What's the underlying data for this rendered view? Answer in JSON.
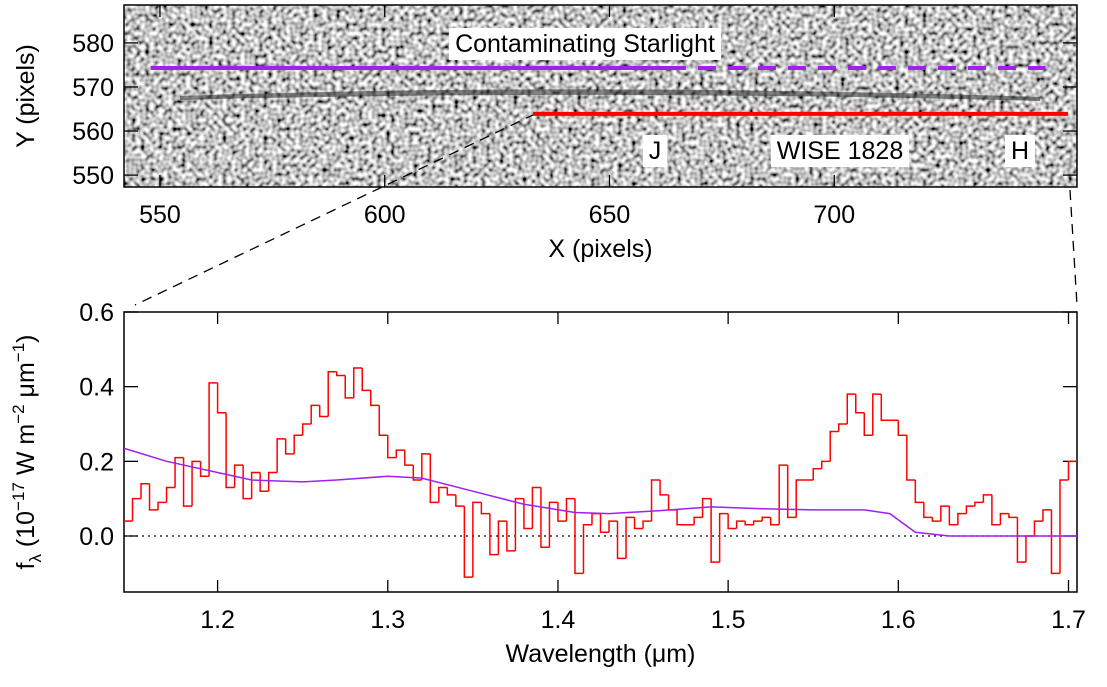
{
  "chart_data": [
    {
      "type": "image",
      "xlabel": "X (pixels)",
      "ylabel": "Y (pixels)",
      "xlim": [
        542,
        754
      ],
      "ylim": [
        547.3,
        588.6
      ],
      "xticks": [
        550,
        600,
        650,
        700
      ],
      "yticks": [
        550,
        560,
        570,
        580
      ],
      "lines": [
        {
          "color": "#a020f0",
          "style": "solid",
          "x": [
            548,
            663
          ],
          "y": [
            574.3,
            574.3
          ]
        },
        {
          "color": "#a020f0",
          "style": "dashed",
          "x": [
            663,
            747
          ],
          "y": [
            574.3,
            574.3
          ]
        },
        {
          "color": "#ff0000",
          "style": "solid",
          "x": [
            633,
            752
          ],
          "y": [
            563.9,
            563.9
          ]
        }
      ],
      "annotations": [
        {
          "text": "Contaminating Starlight",
          "color": "#a020f0"
        },
        {
          "text": "J",
          "color": "#ff0000"
        },
        {
          "text": "WISE 1828",
          "color": "#ff0000"
        },
        {
          "text": "H",
          "color": "#ff0000"
        }
      ]
    },
    {
      "type": "line",
      "xlabel": "Wavelength (μm)",
      "ylabel": [
        "f",
        "λ",
        " (10",
        "−17",
        " W m",
        "−2",
        " μm",
        "−1",
        ")"
      ],
      "xlim": [
        1.145,
        1.705
      ],
      "ylim": [
        -0.15,
        0.6
      ],
      "xticks": [
        1.2,
        1.3,
        1.4,
        1.5,
        1.6,
        1.7
      ],
      "yticks": [
        {
          "value": 0,
          "label": "0.0"
        },
        0.2,
        0.4,
        0.6
      ],
      "zero_line": true,
      "series": [
        {
          "color": "#ff0000",
          "step": true,
          "x": [
            1.1475,
            1.1525,
            1.1575,
            1.1625,
            1.1675,
            1.1725,
            1.1775,
            1.1825,
            1.1875,
            1.1925,
            1.1975,
            1.2025,
            1.2075,
            1.2125,
            1.2175,
            1.2225,
            1.2275,
            1.2325,
            1.2375,
            1.2425,
            1.2475,
            1.2525,
            1.2575,
            1.2625,
            1.2675,
            1.2725,
            1.2775,
            1.2825,
            1.2875,
            1.2925,
            1.2975,
            1.3025,
            1.3075,
            1.3125,
            1.3175,
            1.3225,
            1.3275,
            1.3325,
            1.3375,
            1.3425,
            1.3475,
            1.3525,
            1.3575,
            1.3625,
            1.3675,
            1.3725,
            1.3775,
            1.3825,
            1.3875,
            1.3925,
            1.3975,
            1.4025,
            1.4075,
            1.4125,
            1.4175,
            1.4225,
            1.4275,
            1.4325,
            1.4375,
            1.4425,
            1.4475,
            1.4525,
            1.4575,
            1.4625,
            1.4675,
            1.4725,
            1.4775,
            1.4825,
            1.4875,
            1.4925,
            1.4975,
            1.5025,
            1.5075,
            1.5125,
            1.5175,
            1.5225,
            1.5275,
            1.5325,
            1.5375,
            1.5425,
            1.5475,
            1.5525,
            1.5575,
            1.5625,
            1.5675,
            1.5725,
            1.5775,
            1.5825,
            1.5875,
            1.5925,
            1.5975,
            1.6025,
            1.6075,
            1.6125,
            1.6175,
            1.6225,
            1.6275,
            1.6325,
            1.6375,
            1.6425,
            1.6475,
            1.6525,
            1.6575,
            1.6625,
            1.6675,
            1.6725,
            1.6775,
            1.6825,
            1.6875,
            1.6925,
            1.6975,
            1.7025
          ],
          "values": [
            0.04,
            0.1,
            0.14,
            0.07,
            0.09,
            0.13,
            0.21,
            0.08,
            0.2,
            0.16,
            0.41,
            0.33,
            0.13,
            0.19,
            0.1,
            0.17,
            0.12,
            0.17,
            0.26,
            0.22,
            0.27,
            0.3,
            0.35,
            0.32,
            0.44,
            0.43,
            0.37,
            0.45,
            0.39,
            0.35,
            0.27,
            0.21,
            0.23,
            0.19,
            0.15,
            0.22,
            0.09,
            0.13,
            0.11,
            0.08,
            -0.11,
            0.09,
            0.06,
            -0.05,
            0.04,
            -0.04,
            0.1,
            0.02,
            0.13,
            -0.03,
            0.09,
            0.04,
            0.1,
            -0.1,
            0.03,
            0.06,
            0.01,
            0.04,
            -0.06,
            0.05,
            0.02,
            0.04,
            0.15,
            0.11,
            0.07,
            0.03,
            0.03,
            0.05,
            0.1,
            -0.07,
            0.06,
            0.02,
            0.04,
            0.03,
            0.04,
            0.05,
            0.03,
            0.19,
            0.05,
            0.15,
            0.15,
            0.18,
            0.2,
            0.28,
            0.3,
            0.38,
            0.33,
            0.27,
            0.38,
            0.31,
            0.31,
            0.27,
            0.15,
            0.09,
            0.05,
            0.04,
            0.08,
            0.03,
            0.06,
            0.08,
            0.09,
            0.11,
            0.03,
            0.06,
            0.05,
            -0.07,
            0.0,
            0.04,
            0.07,
            -0.1,
            0.15,
            0.2
          ]
        },
        {
          "color": "#a020f0",
          "step": false,
          "x": [
            1.145,
            1.17,
            1.2,
            1.22,
            1.25,
            1.27,
            1.3,
            1.32,
            1.35,
            1.38,
            1.41,
            1.43,
            1.46,
            1.49,
            1.52,
            1.55,
            1.58,
            1.595,
            1.61,
            1.63,
            1.705
          ],
          "values": [
            0.235,
            0.2,
            0.17,
            0.15,
            0.145,
            0.15,
            0.16,
            0.155,
            0.12,
            0.085,
            0.063,
            0.06,
            0.068,
            0.078,
            0.073,
            0.07,
            0.07,
            0.06,
            0.01,
            0.0,
            0.0
          ]
        }
      ]
    }
  ]
}
